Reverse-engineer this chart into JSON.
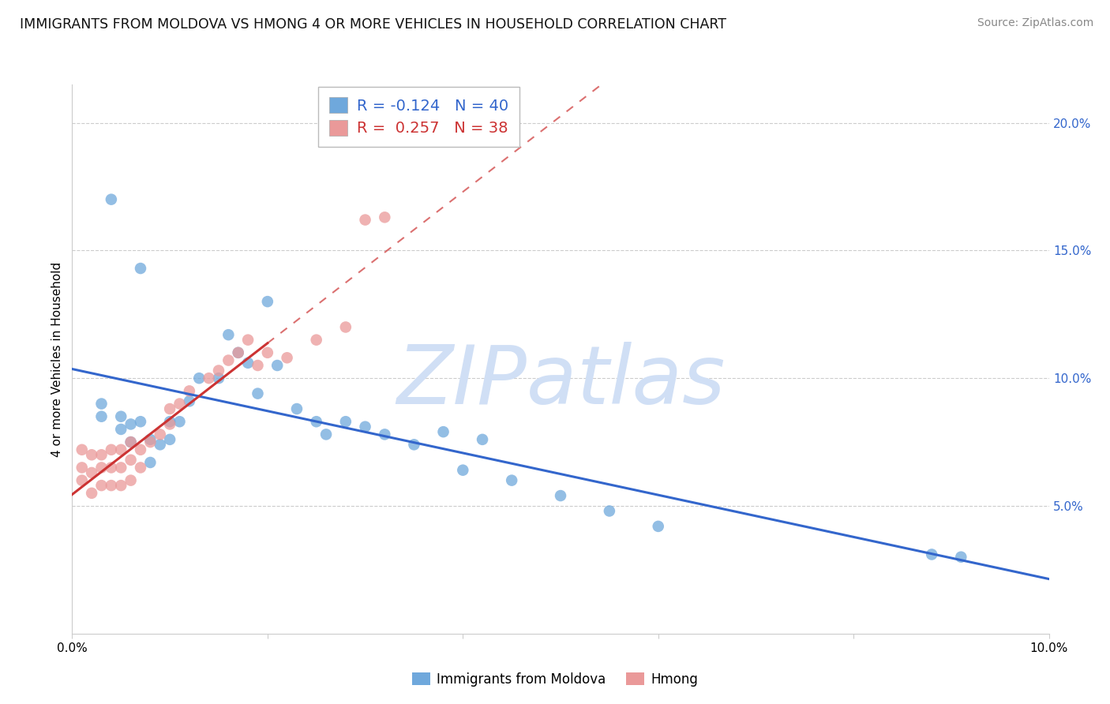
{
  "title": "IMMIGRANTS FROM MOLDOVA VS HMONG 4 OR MORE VEHICLES IN HOUSEHOLD CORRELATION CHART",
  "source": "Source: ZipAtlas.com",
  "ylabel": "4 or more Vehicles in Household",
  "xlim": [
    0.0,
    0.1
  ],
  "ylim": [
    0.0,
    0.215
  ],
  "xticks": [
    0.0,
    0.02,
    0.04,
    0.06,
    0.08,
    0.1
  ],
  "xtick_labels": [
    "0.0%",
    "",
    "",
    "",
    "",
    "10.0%"
  ],
  "yticks_right": [
    0.05,
    0.1,
    0.15,
    0.2
  ],
  "ytick_labels_right": [
    "5.0%",
    "10.0%",
    "15.0%",
    "20.0%"
  ],
  "legend_blue_R": "-0.124",
  "legend_blue_N": "40",
  "legend_pink_R": "0.257",
  "legend_pink_N": "38",
  "legend_labels": [
    "Immigrants from Moldova",
    "Hmong"
  ],
  "blue_color": "#6fa8dc",
  "pink_color": "#ea9999",
  "blue_line_color": "#3366cc",
  "pink_line_color": "#cc3333",
  "watermark_text": "ZIPatlas",
  "watermark_color": "#d0dff5",
  "grid_color": "#cccccc",
  "background_color": "#ffffff",
  "moldova_x": [
    0.003,
    0.003,
    0.004,
    0.005,
    0.005,
    0.006,
    0.006,
    0.007,
    0.007,
    0.008,
    0.008,
    0.009,
    0.01,
    0.01,
    0.011,
    0.012,
    0.013,
    0.015,
    0.016,
    0.017,
    0.018,
    0.019,
    0.02,
    0.021,
    0.023,
    0.025,
    0.026,
    0.028,
    0.03,
    0.032,
    0.035,
    0.038,
    0.04,
    0.042,
    0.045,
    0.05,
    0.055,
    0.06,
    0.088,
    0.091
  ],
  "moldova_y": [
    0.085,
    0.09,
    0.17,
    0.08,
    0.085,
    0.075,
    0.082,
    0.143,
    0.083,
    0.076,
    0.067,
    0.074,
    0.083,
    0.076,
    0.083,
    0.091,
    0.1,
    0.1,
    0.117,
    0.11,
    0.106,
    0.094,
    0.13,
    0.105,
    0.088,
    0.083,
    0.078,
    0.083,
    0.081,
    0.078,
    0.074,
    0.079,
    0.064,
    0.076,
    0.06,
    0.054,
    0.048,
    0.042,
    0.031,
    0.03
  ],
  "hmong_x": [
    0.001,
    0.001,
    0.001,
    0.002,
    0.002,
    0.002,
    0.003,
    0.003,
    0.003,
    0.004,
    0.004,
    0.004,
    0.005,
    0.005,
    0.005,
    0.006,
    0.006,
    0.006,
    0.007,
    0.007,
    0.008,
    0.009,
    0.01,
    0.01,
    0.011,
    0.012,
    0.014,
    0.015,
    0.016,
    0.017,
    0.018,
    0.019,
    0.02,
    0.022,
    0.025,
    0.028,
    0.03,
    0.032
  ],
  "hmong_y": [
    0.06,
    0.065,
    0.072,
    0.055,
    0.063,
    0.07,
    0.058,
    0.065,
    0.07,
    0.058,
    0.065,
    0.072,
    0.058,
    0.065,
    0.072,
    0.06,
    0.068,
    0.075,
    0.065,
    0.072,
    0.075,
    0.078,
    0.082,
    0.088,
    0.09,
    0.095,
    0.1,
    0.103,
    0.107,
    0.11,
    0.115,
    0.105,
    0.11,
    0.108,
    0.115,
    0.12,
    0.162,
    0.163
  ]
}
